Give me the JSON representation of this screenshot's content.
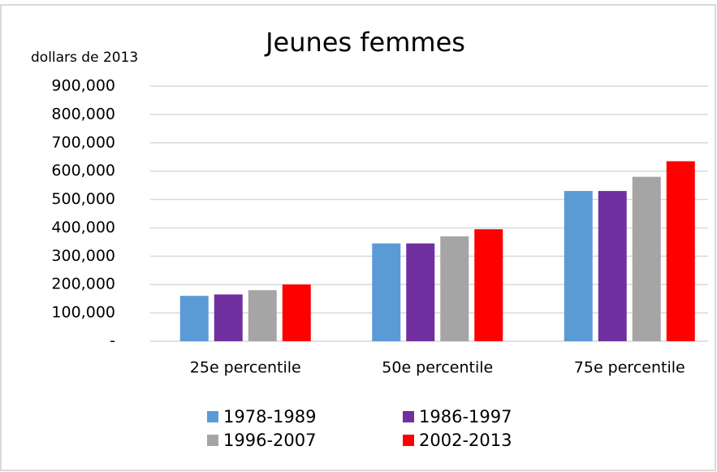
{
  "chart_data": {
    "type": "bar",
    "title": "Jeunes femmes",
    "y_label": "dollars de 2013",
    "categories": [
      "25e percentile",
      "50e percentile",
      "75e percentile"
    ],
    "series": [
      {
        "name": "1978-1989",
        "color": "#5b9bd5",
        "values": [
          160000,
          345000,
          530000
        ]
      },
      {
        "name": "1986-1997",
        "color": "#7030a0",
        "values": [
          165000,
          345000,
          530000
        ]
      },
      {
        "name": "1996-2007",
        "color": "#a5a5a5",
        "values": [
          180000,
          370000,
          580000
        ]
      },
      {
        "name": "2002-2013",
        "color": "#ff0000",
        "values": [
          200000,
          395000,
          635000
        ]
      }
    ],
    "ylim": [
      0,
      900000
    ],
    "yticks": [
      {
        "value": 0,
        "label": "-"
      },
      {
        "value": 100000,
        "label": "100,000"
      },
      {
        "value": 200000,
        "label": "200,000"
      },
      {
        "value": 300000,
        "label": "300,000"
      },
      {
        "value": 400000,
        "label": "400,000"
      },
      {
        "value": 500000,
        "label": "500,000"
      },
      {
        "value": 600000,
        "label": "600,000"
      },
      {
        "value": 700000,
        "label": "700,000"
      },
      {
        "value": 800000,
        "label": "800,000"
      },
      {
        "value": 900000,
        "label": "900,000"
      }
    ],
    "grid": true
  }
}
